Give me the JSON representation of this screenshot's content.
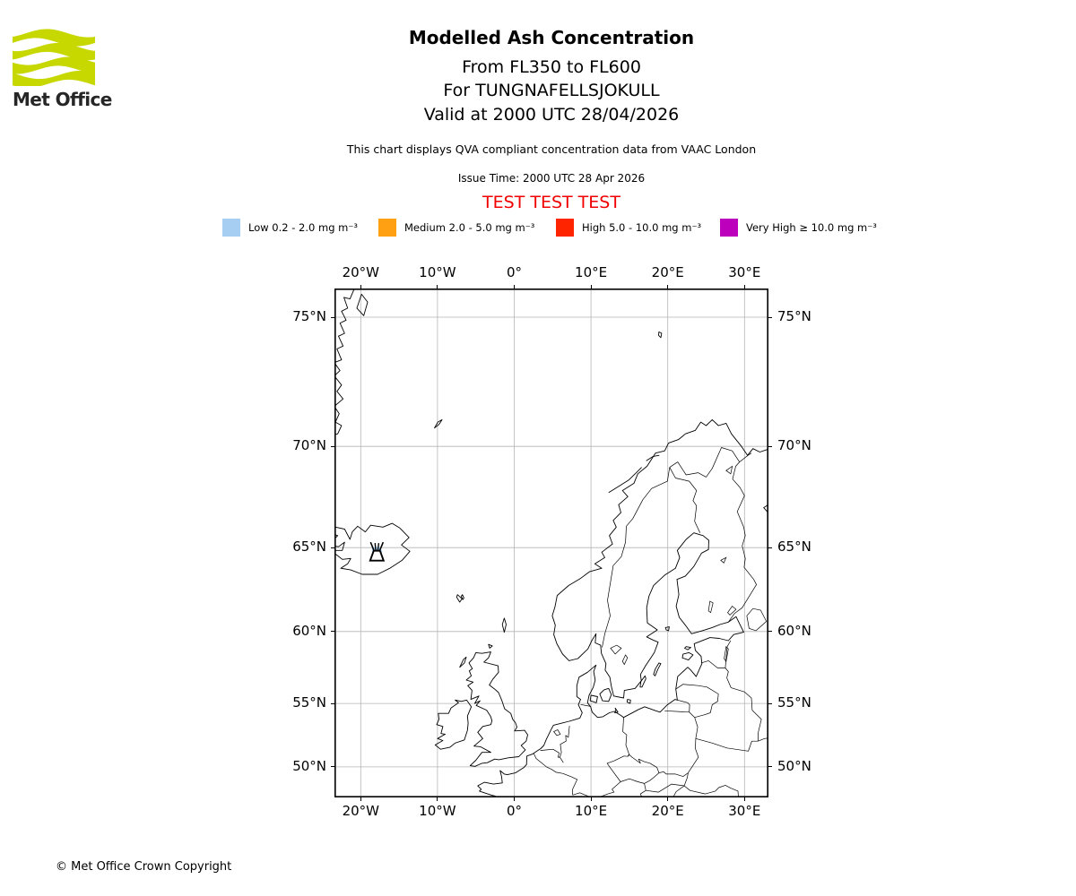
{
  "logo": {
    "brand": "Met Office",
    "brand_color": "#c6d800"
  },
  "header": {
    "title": "Modelled Ash Concentration",
    "flight_level_range": "From FL350 to FL600",
    "volcano_line": "For TUNGNAFELLSJOKULL",
    "valid_line": "Valid at 2000 UTC 28/04/2026",
    "compliance_note": "This chart displays QVA compliant concentration data from VAAC London",
    "issue_time": "Issue Time: 2000 UTC 28 Apr 2026",
    "test_banner": "TEST TEST TEST",
    "test_banner_color": "#f00000"
  },
  "legend": {
    "items": [
      {
        "id": "low",
        "label": "Low 0.2 - 2.0 mg m⁻³",
        "color": "#a6cef3"
      },
      {
        "id": "medium",
        "label": "Medium 2.0 - 5.0 mg m⁻³",
        "color": "#ffa012"
      },
      {
        "id": "high",
        "label": "High 5.0 - 10.0 mg m⁻³",
        "color": "#ff2400"
      },
      {
        "id": "very-high",
        "label": "Very High ≥ 10.0 mg m⁻³",
        "color": "#bc00bc"
      }
    ]
  },
  "map": {
    "projection": "Mercator",
    "grid_color": "#b5b5b5",
    "xticks": [
      {
        "label": "20°W",
        "lon": -20
      },
      {
        "label": "10°W",
        "lon": -10
      },
      {
        "label": "0°",
        "lon": 0
      },
      {
        "label": "10°E",
        "lon": 10
      },
      {
        "label": "20°E",
        "lon": 20
      },
      {
        "label": "30°E",
        "lon": 30
      }
    ],
    "yticks": [
      {
        "label": "75°N",
        "lat": 75
      },
      {
        "label": "70°N",
        "lat": 70
      },
      {
        "label": "65°N",
        "lat": 65
      },
      {
        "label": "60°N",
        "lat": 60
      },
      {
        "label": "55°N",
        "lat": 55
      },
      {
        "label": "50°N",
        "lat": 50
      }
    ],
    "ash_patch_color": "#a6cef3",
    "ash_source_color": "#ffa012"
  },
  "footer": {
    "copyright": "© Met Office Crown Copyright"
  }
}
